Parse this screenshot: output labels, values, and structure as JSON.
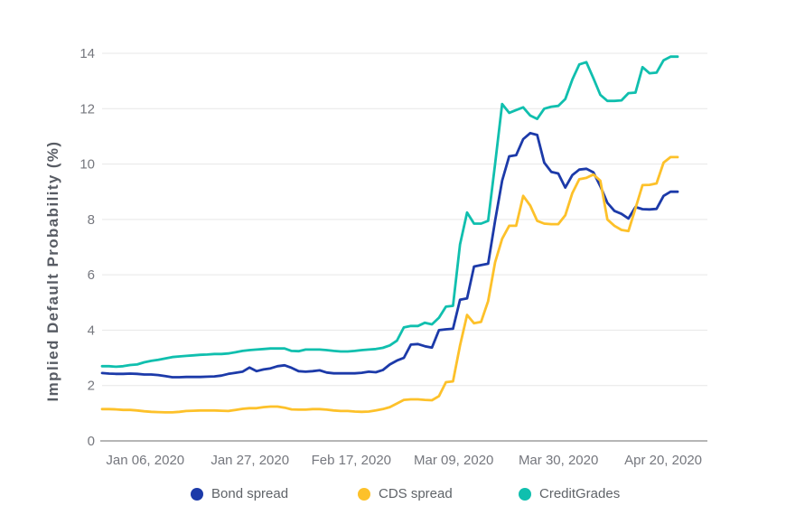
{
  "chart_data": {
    "type": "line",
    "title": "",
    "xlabel": "",
    "ylabel": "Implied Default Probability (%)",
    "ylim": [
      0,
      14
    ],
    "y_ticks": [
      0,
      2,
      4,
      6,
      8,
      10,
      12,
      14
    ],
    "grid": true,
    "legend_position": "bottom",
    "x_ticks": [
      {
        "label": "Jan 06, 2020",
        "t": 0.075
      },
      {
        "label": "Jan 27, 2020",
        "t": 0.257
      },
      {
        "label": "Feb 17, 2020",
        "t": 0.433
      },
      {
        "label": "Mar 09, 2020",
        "t": 0.611
      },
      {
        "label": "Mar 30, 2020",
        "t": 0.793
      },
      {
        "label": "Apr 20, 2020",
        "t": 0.975
      }
    ],
    "x_description": "Daily (business day) observations from late Dec 2019 through late Apr 2020",
    "series": [
      {
        "name": "Bond spread",
        "color": "#1c3aa9",
        "values": [
          2.45,
          2.43,
          2.42,
          2.42,
          2.43,
          2.42,
          2.4,
          2.4,
          2.38,
          2.34,
          2.3,
          2.3,
          2.31,
          2.31,
          2.31,
          2.32,
          2.33,
          2.36,
          2.42,
          2.46,
          2.5,
          2.65,
          2.52,
          2.58,
          2.62,
          2.7,
          2.73,
          2.64,
          2.52,
          2.5,
          2.52,
          2.55,
          2.47,
          2.44,
          2.44,
          2.44,
          2.44,
          2.46,
          2.5,
          2.48,
          2.56,
          2.76,
          2.9,
          3.0,
          3.48,
          3.5,
          3.42,
          3.37,
          4.0,
          4.03,
          4.05,
          5.1,
          5.15,
          6.3,
          6.35,
          6.4,
          7.95,
          9.4,
          10.28,
          10.32,
          10.9,
          11.12,
          11.05,
          10.05,
          9.72,
          9.66,
          9.15,
          9.6,
          9.8,
          9.83,
          9.7,
          9.2,
          8.6,
          8.31,
          8.2,
          8.03,
          8.45,
          8.37,
          8.36,
          8.38,
          8.85,
          9.0,
          9.0
        ]
      },
      {
        "name": "CDS spread",
        "color": "#fdc12a",
        "values": [
          1.15,
          1.15,
          1.14,
          1.12,
          1.12,
          1.1,
          1.07,
          1.05,
          1.04,
          1.03,
          1.03,
          1.05,
          1.08,
          1.09,
          1.1,
          1.1,
          1.1,
          1.09,
          1.08,
          1.12,
          1.16,
          1.18,
          1.18,
          1.22,
          1.24,
          1.24,
          1.2,
          1.14,
          1.13,
          1.13,
          1.15,
          1.15,
          1.13,
          1.1,
          1.08,
          1.08,
          1.06,
          1.05,
          1.06,
          1.1,
          1.15,
          1.22,
          1.35,
          1.48,
          1.5,
          1.5,
          1.48,
          1.47,
          1.62,
          2.12,
          2.15,
          3.45,
          4.55,
          4.25,
          4.3,
          5.05,
          6.45,
          7.3,
          7.77,
          7.77,
          8.85,
          8.5,
          7.95,
          7.85,
          7.83,
          7.83,
          8.15,
          8.95,
          9.45,
          9.5,
          9.62,
          9.4,
          8.0,
          7.77,
          7.62,
          7.58,
          8.4,
          9.24,
          9.25,
          9.3,
          10.05,
          10.25,
          10.25
        ]
      },
      {
        "name": "CreditGrades",
        "color": "#10bfae",
        "values": [
          2.7,
          2.7,
          2.68,
          2.7,
          2.74,
          2.76,
          2.84,
          2.89,
          2.93,
          2.98,
          3.03,
          3.05,
          3.07,
          3.09,
          3.11,
          3.12,
          3.14,
          3.14,
          3.16,
          3.2,
          3.25,
          3.28,
          3.3,
          3.32,
          3.34,
          3.34,
          3.34,
          3.25,
          3.24,
          3.3,
          3.3,
          3.3,
          3.28,
          3.25,
          3.23,
          3.23,
          3.25,
          3.28,
          3.3,
          3.32,
          3.36,
          3.45,
          3.62,
          4.1,
          4.15,
          4.15,
          4.27,
          4.21,
          4.45,
          4.85,
          4.88,
          7.1,
          8.25,
          7.85,
          7.85,
          7.95,
          10.0,
          12.17,
          11.85,
          11.95,
          12.05,
          11.75,
          11.63,
          12.0,
          12.07,
          12.1,
          12.35,
          13.05,
          13.6,
          13.68,
          13.1,
          12.5,
          12.28,
          12.28,
          12.3,
          12.56,
          12.58,
          13.5,
          13.28,
          13.3,
          13.75,
          13.88,
          13.88
        ]
      }
    ],
    "style": {
      "grid_color": "#e7e7e7",
      "axis_line_color": "#b6b6b6",
      "tick_label_color": "#75777e",
      "axis_title_color": "#585c64",
      "legend_label_color": "#5f6368",
      "background": "#ffffff"
    }
  }
}
